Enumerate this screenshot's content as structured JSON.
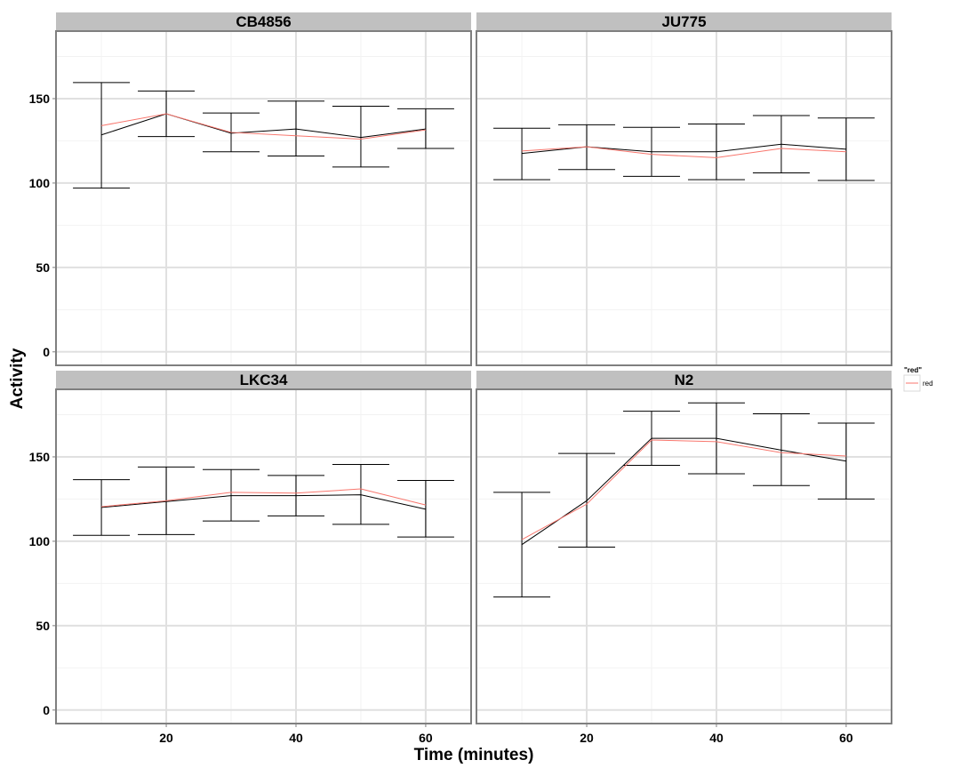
{
  "chart_data": {
    "type": "line",
    "xlabel": "Time (minutes)",
    "ylabel": "Activity",
    "xlim": [
      3,
      67
    ],
    "ylim": [
      -8,
      190
    ],
    "x_ticks": [
      20,
      40,
      60
    ],
    "y_ticks": [
      0,
      50,
      100,
      150
    ],
    "grid": true,
    "legend": {
      "title": "\"red\"",
      "placement": "right",
      "entries": [
        {
          "label": "red",
          "color": "#F8766D"
        }
      ]
    },
    "panels": [
      {
        "name": "CB4856",
        "x": [
          10,
          20,
          30,
          40,
          50,
          60
        ],
        "mean": [
          128.5,
          141,
          129.5,
          132,
          127,
          132
        ],
        "red": [
          134,
          141,
          130,
          128,
          126,
          131.5
        ],
        "error_low": [
          97,
          127.5,
          118.5,
          116,
          109.5,
          120.5
        ],
        "error_high": [
          159.5,
          154.5,
          141.5,
          148.5,
          145.5,
          144
        ]
      },
      {
        "name": "JU775",
        "x": [
          10,
          20,
          30,
          40,
          50,
          60
        ],
        "mean": [
          117.5,
          121.5,
          118.5,
          118.5,
          123,
          120
        ],
        "red": [
          119,
          121.5,
          117,
          115,
          120.5,
          118.5
        ],
        "error_low": [
          102,
          108,
          104,
          102,
          106,
          101.5
        ],
        "error_high": [
          132.5,
          134.5,
          133,
          135,
          140,
          138.5
        ]
      },
      {
        "name": "LKC34",
        "x": [
          10,
          20,
          30,
          40,
          50,
          60
        ],
        "mean": [
          120,
          123.5,
          127,
          127,
          127.5,
          119
        ],
        "red": [
          120.5,
          124,
          129,
          128.5,
          131,
          121.5
        ],
        "error_low": [
          103.5,
          104,
          112,
          115,
          110,
          102.5
        ],
        "error_high": [
          136.5,
          144,
          142.5,
          139,
          145.5,
          136
        ]
      },
      {
        "name": "N2",
        "x": [
          10,
          20,
          30,
          40,
          50,
          60
        ],
        "mean": [
          98,
          124,
          161,
          161,
          154,
          147.5
        ],
        "red": [
          101,
          122,
          160,
          159,
          152.5,
          150.5
        ],
        "error_low": [
          67,
          96.5,
          145,
          140,
          133,
          125
        ],
        "error_high": [
          129,
          152,
          177,
          182,
          175.5,
          170
        ]
      }
    ]
  },
  "colors": {
    "mean_line": "#000000",
    "red_line": "#F8766D",
    "strip_bg": "#C0C0C0",
    "panel_border": "#7F7F7F",
    "grid_major": "#E0E0E0",
    "grid_minor": "#F2F2F2"
  }
}
